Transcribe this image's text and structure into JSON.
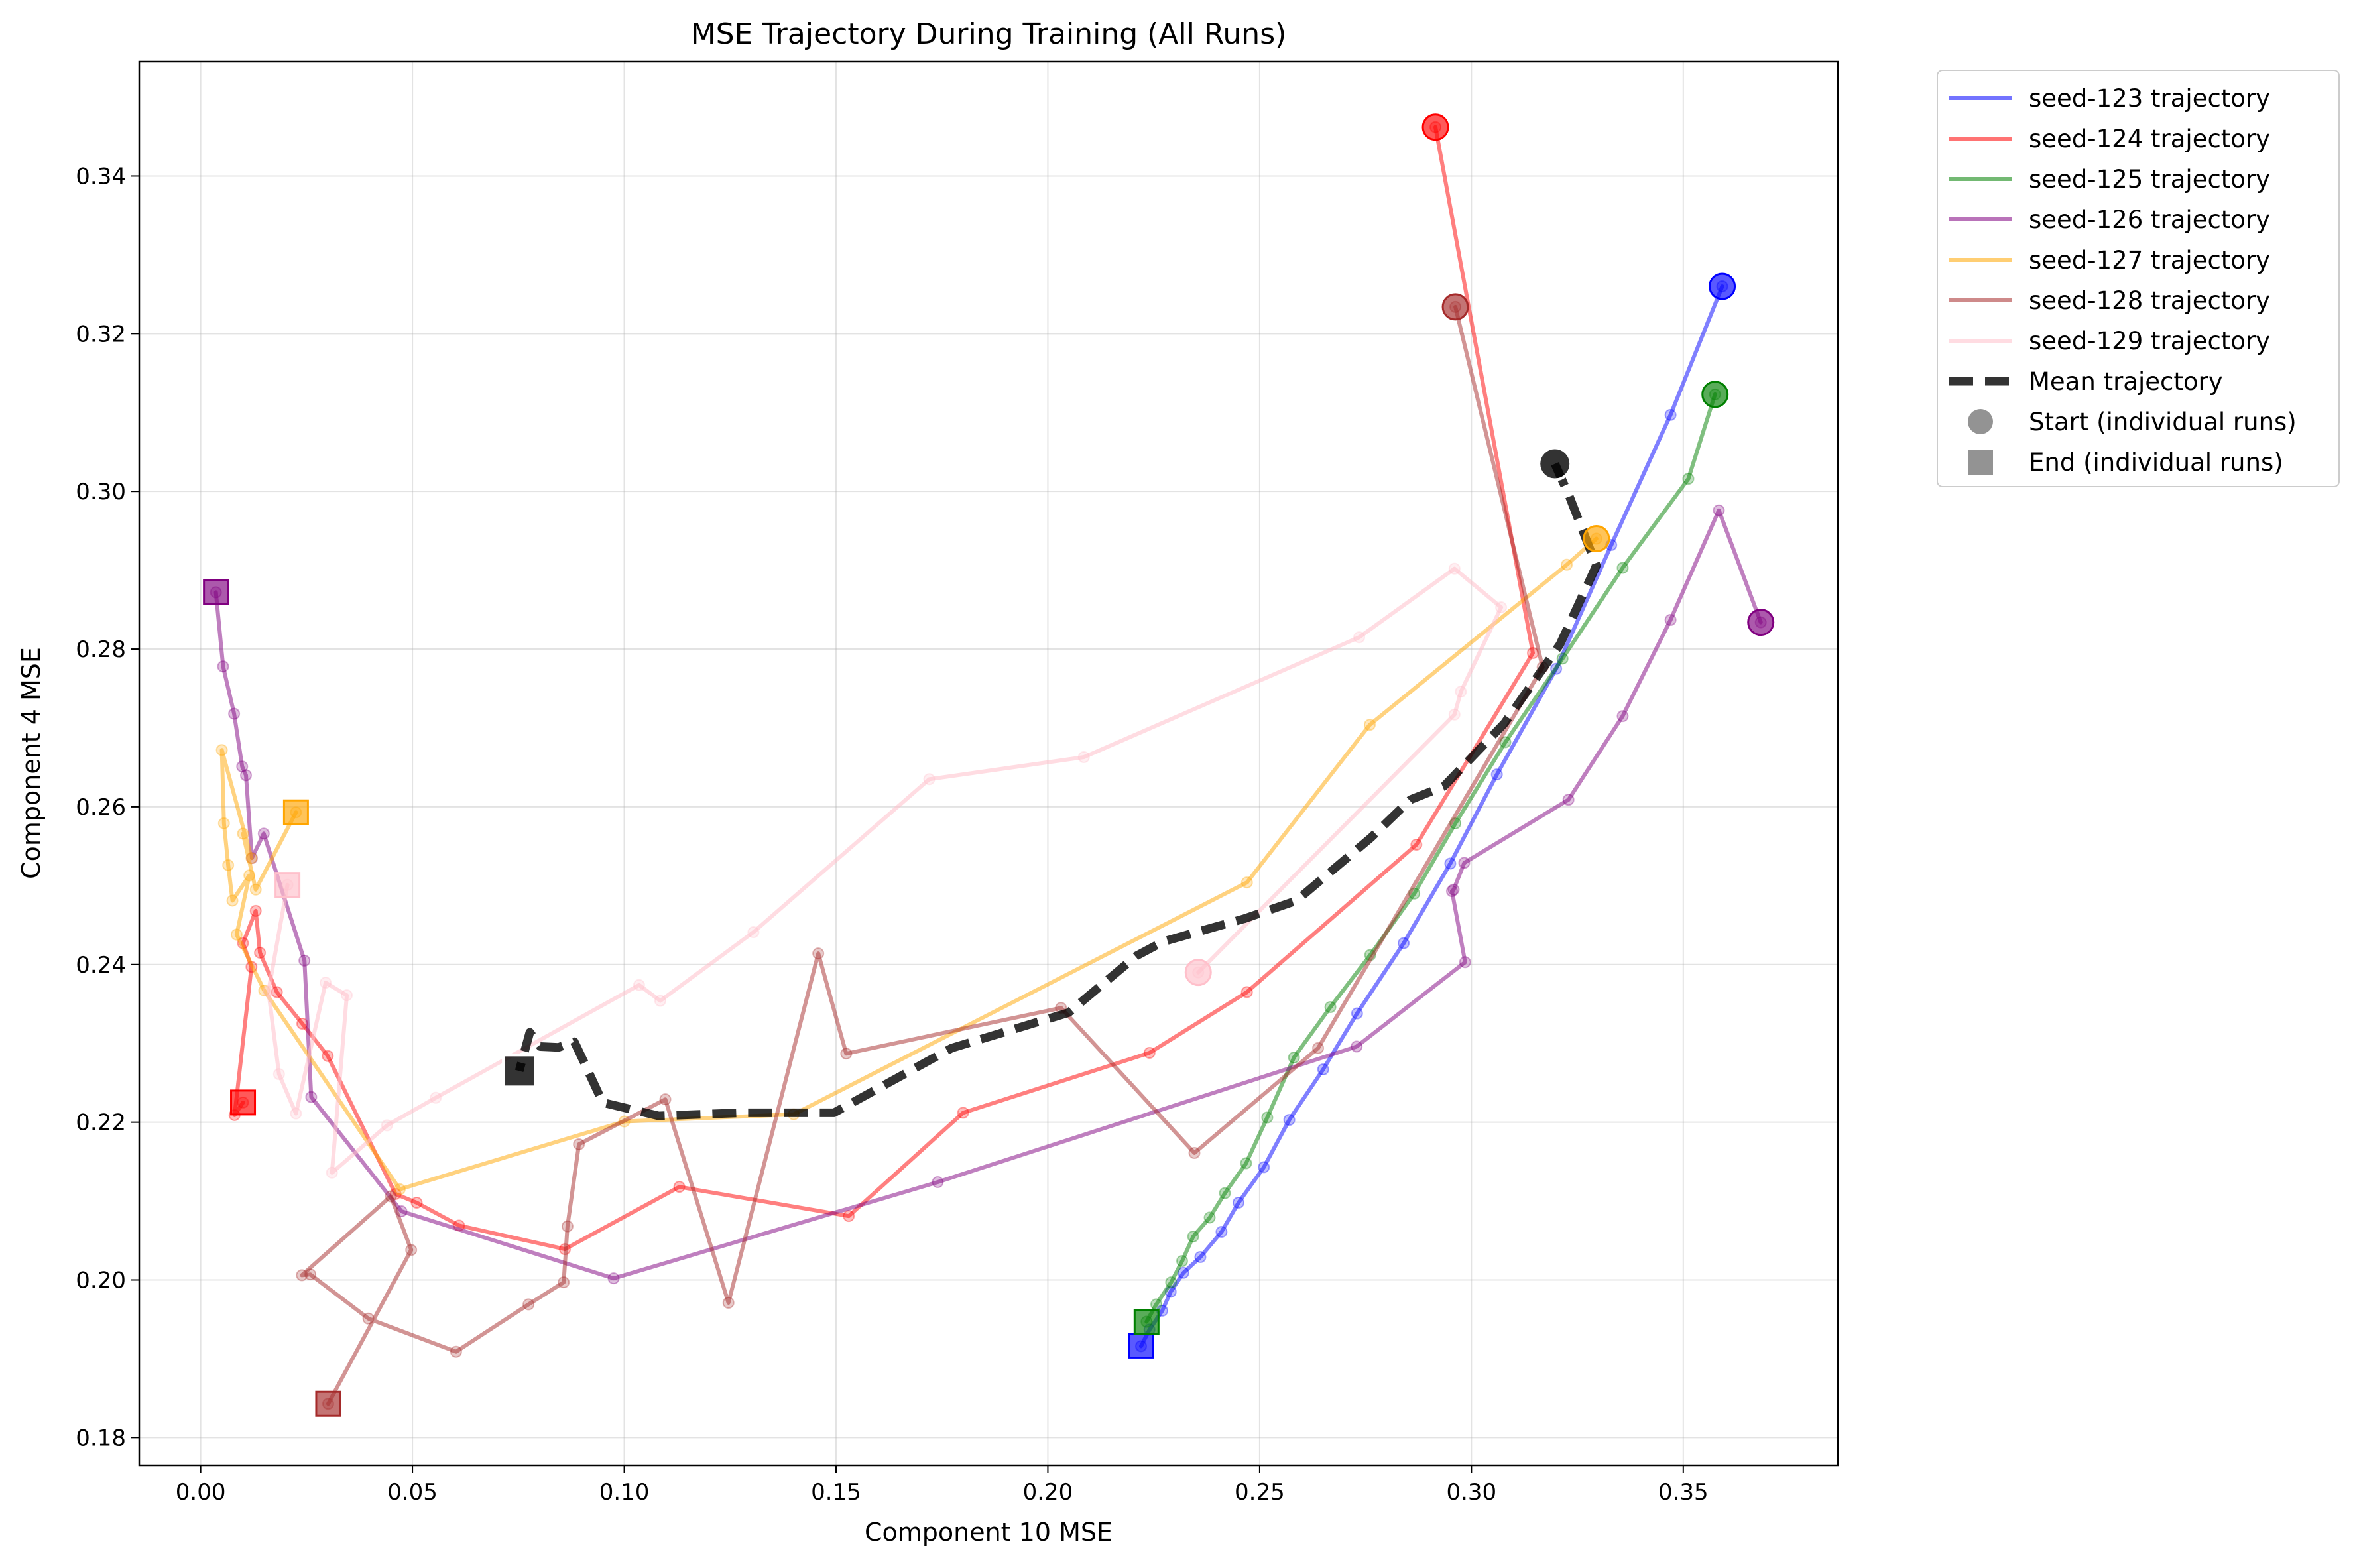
{
  "chart_data": {
    "type": "line",
    "title": "MSE Trajectory During Training (All Runs)",
    "xlabel": "Component 10 MSE",
    "ylabel": "Component 4 MSE",
    "xlim": [
      -0.0145,
      0.3865
    ],
    "ylim": [
      0.1765,
      0.3545
    ],
    "xticks": [
      0.0,
      0.05,
      0.1,
      0.15,
      0.2,
      0.25,
      0.3,
      0.35
    ],
    "xtick_labels": [
      "0.00",
      "0.05",
      "0.10",
      "0.15",
      "0.20",
      "0.25",
      "0.30",
      "0.35"
    ],
    "yticks": [
      0.18,
      0.2,
      0.22,
      0.24,
      0.26,
      0.28,
      0.3,
      0.32,
      0.34
    ],
    "ytick_labels": [
      "0.18",
      "0.20",
      "0.22",
      "0.24",
      "0.26",
      "0.28",
      "0.30",
      "0.32",
      "0.34"
    ],
    "grid": true,
    "legend_position": "outside-top-right",
    "series": [
      {
        "name": "seed-123 trajectory",
        "color": "#0000ff",
        "x": [
          0.3592,
          0.347,
          0.333,
          0.32,
          0.306,
          0.295,
          0.284,
          0.273,
          0.265,
          0.257,
          0.251,
          0.245,
          0.241,
          0.236,
          0.232,
          0.229,
          0.227,
          0.224,
          0.222
        ],
        "y": [
          0.326,
          0.3097,
          0.2932,
          0.2775,
          0.2641,
          0.2528,
          0.2427,
          0.2338,
          0.2267,
          0.2203,
          0.2143,
          0.2098,
          0.2061,
          0.2029,
          0.2009,
          0.1985,
          0.1961,
          0.1937,
          0.1916
        ]
      },
      {
        "name": "seed-124 trajectory",
        "color": "#ff0000",
        "x": [
          0.2915,
          0.3145,
          0.287,
          0.247,
          0.224,
          0.18,
          0.153,
          0.113,
          0.086,
          0.061,
          0.051,
          0.046,
          0.03,
          0.024,
          0.018,
          0.014,
          0.013,
          0.01,
          0.012,
          0.008,
          0.01
        ],
        "y": [
          0.3462,
          0.2795,
          0.2552,
          0.2365,
          0.2288,
          0.2212,
          0.2081,
          0.2118,
          0.2039,
          0.2069,
          0.2098,
          0.2109,
          0.2284,
          0.2325,
          0.2365,
          0.2415,
          0.2468,
          0.2427,
          0.2397,
          0.2209,
          0.2225
        ]
      },
      {
        "name": "seed-125 trajectory",
        "color": "#008000",
        "x": [
          0.3575,
          0.3512,
          0.3357,
          0.3215,
          0.308,
          0.2962,
          0.2865,
          0.2761,
          0.2667,
          0.2581,
          0.2518,
          0.2468,
          0.2418,
          0.2382,
          0.2343,
          0.2317,
          0.2291,
          0.2256,
          0.2233
        ],
        "y": [
          0.3123,
          0.3016,
          0.2903,
          0.2788,
          0.2682,
          0.2579,
          0.249,
          0.2412,
          0.2346,
          0.2282,
          0.2206,
          0.2148,
          0.211,
          0.2079,
          0.2055,
          0.2024,
          0.1997,
          0.1969,
          0.1947
        ]
      },
      {
        "name": "seed-126 trajectory",
        "color": "#800080",
        "x": [
          0.3683,
          0.3584,
          0.347,
          0.3357,
          0.3229,
          0.2983,
          0.2958,
          0.2954,
          0.2985,
          0.2729,
          0.174,
          0.0975,
          0.0474,
          0.0261,
          0.0245,
          0.0149,
          0.0121,
          0.0107,
          0.0098,
          0.0079,
          0.0053,
          0.0036
        ],
        "y": [
          0.2834,
          0.2976,
          0.2837,
          0.2715,
          0.2609,
          0.2529,
          0.2495,
          0.2493,
          0.2403,
          0.2296,
          0.2124,
          0.2002,
          0.2087,
          0.2232,
          0.2405,
          0.2566,
          0.2535,
          0.264,
          0.2651,
          0.2718,
          0.2778,
          0.2872
        ]
      },
      {
        "name": "seed-127 trajectory",
        "color": "#ffa500",
        "x": [
          0.3295,
          0.3225,
          0.276,
          0.247,
          0.14,
          0.1,
          0.047,
          0.015,
          0.0085,
          0.0115,
          0.0075,
          0.0065,
          0.0055,
          0.005,
          0.012,
          0.01,
          0.013,
          0.0225
        ],
        "y": [
          0.294,
          0.2907,
          0.2704,
          0.2504,
          0.221,
          0.2201,
          0.2115,
          0.2367,
          0.2438,
          0.2513,
          0.2481,
          0.2526,
          0.2579,
          0.2672,
          0.2535,
          0.2566,
          0.2495,
          0.2593
        ]
      },
      {
        "name": "seed-128 trajectory",
        "color": "#a52a2a",
        "x": [
          0.2962,
          0.3168,
          0.2638,
          0.2346,
          0.2031,
          0.1524,
          0.1458,
          0.1246,
          0.1097,
          0.0893,
          0.0866,
          0.0857,
          0.0774,
          0.0603,
          0.0396,
          0.0259,
          0.0239,
          0.0449,
          0.0497,
          0.0301
        ],
        "y": [
          0.3234,
          0.2777,
          0.2294,
          0.2161,
          0.2345,
          0.2287,
          0.2414,
          0.1971,
          0.2229,
          0.2172,
          0.2068,
          0.1997,
          0.1969,
          0.1909,
          0.1951,
          0.2007,
          0.2006,
          0.2106,
          0.2038,
          0.1843
        ]
      },
      {
        "name": "seed-129 trajectory",
        "color": "#ffc0cb",
        "x": [
          0.2355,
          0.296,
          0.2975,
          0.307,
          0.296,
          0.2735,
          0.2085,
          0.172,
          0.1305,
          0.1085,
          0.1035,
          0.0555,
          0.044,
          0.031,
          0.0345,
          0.0295,
          0.0225,
          0.0185,
          0.016,
          0.0205
        ],
        "y": [
          0.239,
          0.2717,
          0.2746,
          0.2853,
          0.2902,
          0.2815,
          0.2663,
          0.2635,
          0.2441,
          0.2354,
          0.2374,
          0.2231,
          0.2196,
          0.2136,
          0.2361,
          0.2377,
          0.2211,
          0.2261,
          0.2366,
          0.2501
        ]
      }
    ],
    "mean_trajectory": {
      "name": "Mean trajectory",
      "color": "#000000",
      "x": [
        0.3197,
        0.3231,
        0.3295,
        0.3209,
        0.3078,
        0.2935,
        0.2856,
        0.2763,
        0.2587,
        0.2463,
        0.2272,
        0.2209,
        0.2049,
        0.1773,
        0.1495,
        0.1277,
        0.1081,
        0.0949,
        0.0906,
        0.0882,
        0.0845,
        0.0802,
        0.0777,
        0.0752
      ],
      "y": [
        0.3035,
        0.2994,
        0.2906,
        0.2806,
        0.2706,
        0.2626,
        0.2609,
        0.2561,
        0.2481,
        0.2458,
        0.2429,
        0.2411,
        0.2339,
        0.2294,
        0.2212,
        0.2212,
        0.2208,
        0.2225,
        0.2275,
        0.2302,
        0.2295,
        0.2296,
        0.2314,
        0.2265
      ]
    },
    "legend": [
      "seed-123 trajectory",
      "seed-124 trajectory",
      "seed-125 trajectory",
      "seed-126 trajectory",
      "seed-127 trajectory",
      "seed-128 trajectory",
      "seed-129 trajectory",
      "Mean trajectory",
      "Start (individual runs)",
      "End (individual runs)"
    ]
  }
}
